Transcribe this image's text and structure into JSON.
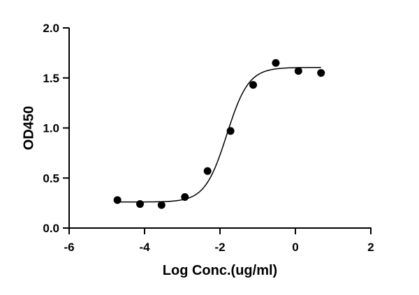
{
  "chart_data": {
    "type": "scatter",
    "title": "",
    "xlabel": "Log Conc.(ug/ml)",
    "ylabel": "OD450",
    "xlim": [
      -6,
      2
    ],
    "ylim": [
      0,
      2
    ],
    "xticks": [
      -6,
      -4,
      -2,
      0,
      2
    ],
    "yticks": [
      0.0,
      0.5,
      1.0,
      1.5,
      2.0
    ],
    "xtick_labels": [
      "-6",
      "-4",
      "-2",
      "0",
      "2"
    ],
    "ytick_labels": [
      "0.0",
      "0.5",
      "1.0",
      "1.5",
      "2.0"
    ],
    "grid": false,
    "legend": "none",
    "series": [
      {
        "type": "scatter",
        "x": [
          -4.72,
          -4.12,
          -3.55,
          -2.93,
          -2.33,
          -1.72,
          -1.12,
          -0.52,
          0.08,
          0.68
        ],
        "y": [
          0.28,
          0.24,
          0.23,
          0.31,
          0.57,
          0.97,
          1.43,
          1.65,
          1.57,
          1.55
        ]
      }
    ],
    "fit": {
      "model": "four-parameter logistic",
      "bottom": 0.26,
      "top": 1.605,
      "log_ec50": -1.82,
      "hill": 1.5,
      "x_range": [
        -4.72,
        0.68
      ]
    }
  }
}
